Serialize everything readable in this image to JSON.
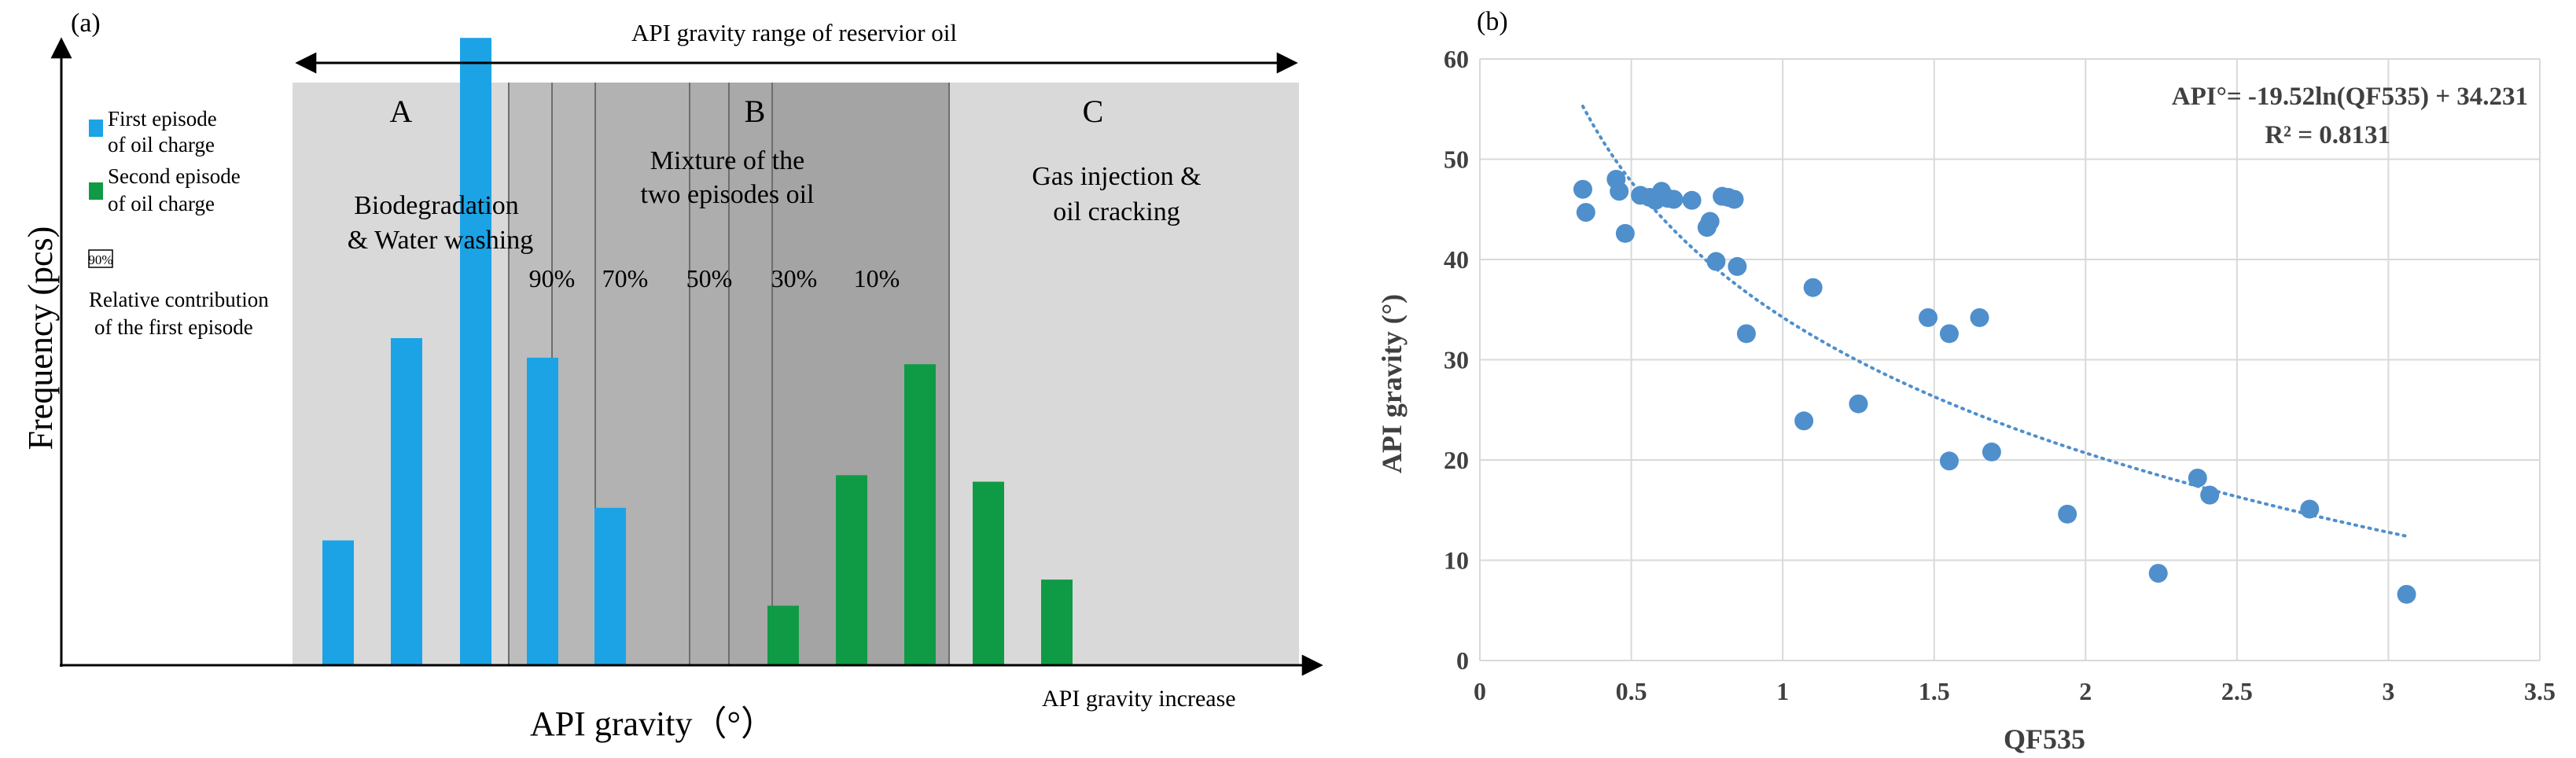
{
  "chart_data": [
    {
      "type": "bar",
      "panel_label": "(a)",
      "title": "API gravity range of reservior oil",
      "xlabel": "API gravity（°）",
      "ylabel": "Frequency (pcs)",
      "x_arrow_label": "API gravity increase",
      "zones": [
        {
          "label": "A",
          "description": [
            "Biodegradation",
            "& Water washing"
          ]
        },
        {
          "label": "B",
          "description": [
            "Mixture of the",
            "two episodes oil"
          ]
        },
        {
          "label": "C",
          "description": [
            "Gas injection &",
            "oil cracking"
          ]
        }
      ],
      "mix_percent_labels": [
        "90%",
        "70%",
        "50%",
        "30%",
        "10%"
      ],
      "legend": {
        "first": [
          "First episode",
          "of oil charge"
        ],
        "second": [
          "Second episode",
          "of oil charge"
        ],
        "box_label": "90%",
        "box_desc": [
          "Relative contribution",
          "of the first episode"
        ]
      },
      "colors": {
        "first": "#1ca3e6",
        "second": "#0f9b45",
        "zone_light": "#d9d9d9",
        "zone_mid": "#bfbfbf",
        "zone_dark": "#a6a6a6"
      },
      "ylim": [
        0,
        100
      ],
      "series": [
        {
          "name": "First episode of oil charge",
          "values": [
            19,
            50,
            96,
            47,
            24
          ]
        },
        {
          "name": "Second episode of oil charge",
          "values": [
            9,
            29,
            46,
            28,
            13
          ]
        }
      ]
    },
    {
      "type": "scatter",
      "panel_label": "(b)",
      "xlabel": "QF535",
      "ylabel": "API gravity (°)",
      "xlim": [
        0,
        3.5
      ],
      "ylim": [
        0,
        60
      ],
      "xticks": [
        "0",
        "0.5",
        "1",
        "1.5",
        "2",
        "2.5",
        "3",
        "3.5"
      ],
      "yticks": [
        "0",
        "10",
        "20",
        "30",
        "40",
        "50",
        "60"
      ],
      "equation": "API°= -19.52ln(QF535) + 34.231",
      "r_squared": "R² = 0.8131",
      "trend": {
        "a": -19.52,
        "b": 34.231,
        "x_range": [
          0.34,
          3.06
        ]
      },
      "point_color": "#4f8fcc",
      "points": [
        [
          0.34,
          47
        ],
        [
          0.35,
          44.7
        ],
        [
          0.45,
          48
        ],
        [
          0.46,
          46.8
        ],
        [
          0.48,
          42.6
        ],
        [
          0.53,
          46.4
        ],
        [
          0.56,
          46.2
        ],
        [
          0.58,
          45.9
        ],
        [
          0.6,
          46.8
        ],
        [
          0.61,
          46.3
        ],
        [
          0.62,
          46.1
        ],
        [
          0.64,
          46
        ],
        [
          0.7,
          45.9
        ],
        [
          0.75,
          43.2
        ],
        [
          0.76,
          43.8
        ],
        [
          0.78,
          39.8
        ],
        [
          0.8,
          46.3
        ],
        [
          0.82,
          46.2
        ],
        [
          0.84,
          46
        ],
        [
          0.85,
          39.3
        ],
        [
          0.88,
          32.6
        ],
        [
          1.07,
          23.9
        ],
        [
          1.1,
          37.2
        ],
        [
          1.25,
          25.6
        ],
        [
          1.48,
          34.2
        ],
        [
          1.55,
          32.6
        ],
        [
          1.55,
          19.9
        ],
        [
          1.65,
          34.2
        ],
        [
          1.69,
          20.8
        ],
        [
          1.94,
          14.6
        ],
        [
          2.24,
          8.7
        ],
        [
          2.37,
          18.2
        ],
        [
          2.41,
          16.5
        ],
        [
          2.74,
          15.1
        ],
        [
          3.06,
          6.6
        ]
      ]
    }
  ]
}
